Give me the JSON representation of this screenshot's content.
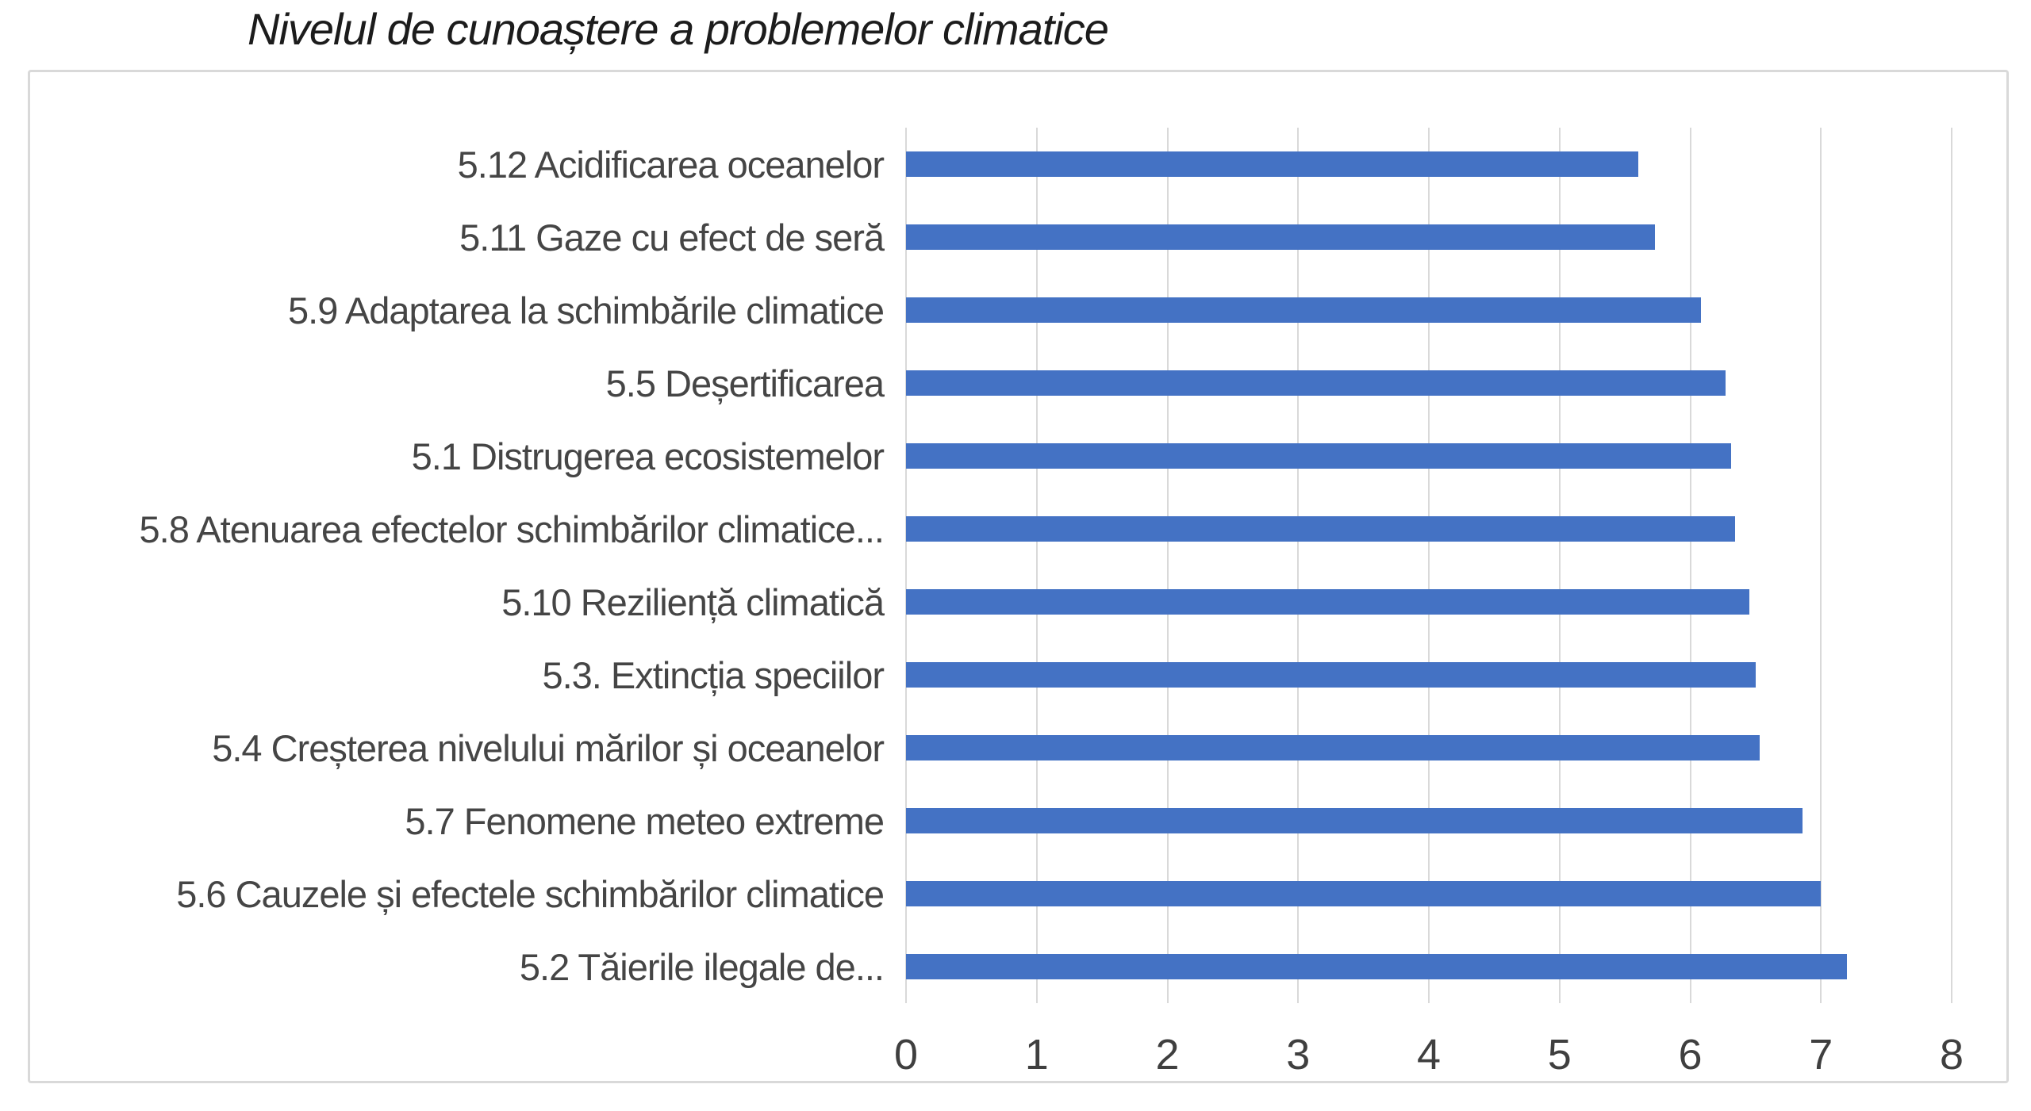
{
  "title": "Nivelul de cunoaștere a problemelor climatice",
  "chart_data": {
    "type": "bar",
    "orientation": "horizontal",
    "title": "Nivelul de cunoaștere a problemelor climatice",
    "categories": [
      "5.12 Acidificarea oceanelor",
      "5.11 Gaze cu efect de seră",
      "5.9 Adaptarea la schimbările climatice",
      "5.5 Deșertificarea",
      "5.1 Distrugerea ecosistemelor",
      "5.8 Atenuarea efectelor schimbărilor climatice...",
      "5.10 Reziliență climatică",
      "5.3. Extincția speciilor",
      "5.4 Creșterea nivelului mărilor și oceanelor",
      "5.7 Fenomene meteo extreme",
      "5.6 Cauzele și efectele schimbărilor climatice",
      "5.2 Tăierile ilegale de..."
    ],
    "values": [
      5.6,
      5.73,
      6.08,
      6.27,
      6.31,
      6.34,
      6.45,
      6.5,
      6.53,
      6.86,
      7.0,
      7.2
    ],
    "xlabel": "",
    "ylabel": "",
    "xlim": [
      0,
      8
    ],
    "x_ticks": [
      "0",
      "1",
      "2",
      "3",
      "4",
      "5",
      "6",
      "7",
      "8"
    ],
    "grid": "vertical",
    "legend": "none",
    "bar_color": "#4472C4",
    "gridline_color": "#d9d9d9",
    "frame_border_color": "#d9d9d9",
    "axis_text_color": "#3f3f3f",
    "label_text_color": "#454545",
    "title_text_color": "#1c1c1c"
  }
}
